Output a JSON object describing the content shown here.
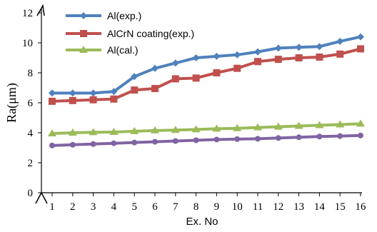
{
  "chart_data": {
    "type": "line",
    "xlabel": "Ex. No",
    "ylabel": "Ra(μm)",
    "ylim": [
      0,
      12
    ],
    "yticks": [
      "0",
      "2",
      "4",
      "6",
      "8",
      "10",
      "12"
    ],
    "categories": [
      "1",
      "2",
      "3",
      "4",
      "5",
      "6",
      "7",
      "8",
      "9",
      "10",
      "11",
      "12",
      "13",
      "14",
      "15",
      "16"
    ],
    "legend_position": "top-left",
    "series": [
      {
        "name": "Al(exp.)",
        "color": "#4f81bd",
        "marker": "diamond",
        "values": [
          6.65,
          6.65,
          6.65,
          6.75,
          7.75,
          8.3,
          8.65,
          9.0,
          9.1,
          9.2,
          9.4,
          9.65,
          9.7,
          9.75,
          10.1,
          10.4
        ]
      },
      {
        "name": "AlCrN coating(exp.)",
        "color": "#c0504d",
        "marker": "square",
        "values": [
          6.1,
          6.15,
          6.2,
          6.25,
          6.85,
          6.95,
          7.6,
          7.65,
          8.0,
          8.3,
          8.75,
          8.9,
          9.0,
          9.05,
          9.25,
          9.6
        ]
      },
      {
        "name": "Al(cal.)",
        "color": "#9bbb59",
        "marker": "triangle",
        "values": [
          3.95,
          4.0,
          4.03,
          4.05,
          4.1,
          4.15,
          4.18,
          4.22,
          4.27,
          4.3,
          4.35,
          4.4,
          4.45,
          4.5,
          4.55,
          4.6
        ]
      },
      {
        "name": "",
        "color": "#8064a2",
        "marker": "circle",
        "values": [
          3.15,
          3.2,
          3.25,
          3.3,
          3.35,
          3.4,
          3.45,
          3.5,
          3.55,
          3.58,
          3.6,
          3.65,
          3.7,
          3.75,
          3.78,
          3.82
        ]
      }
    ]
  }
}
